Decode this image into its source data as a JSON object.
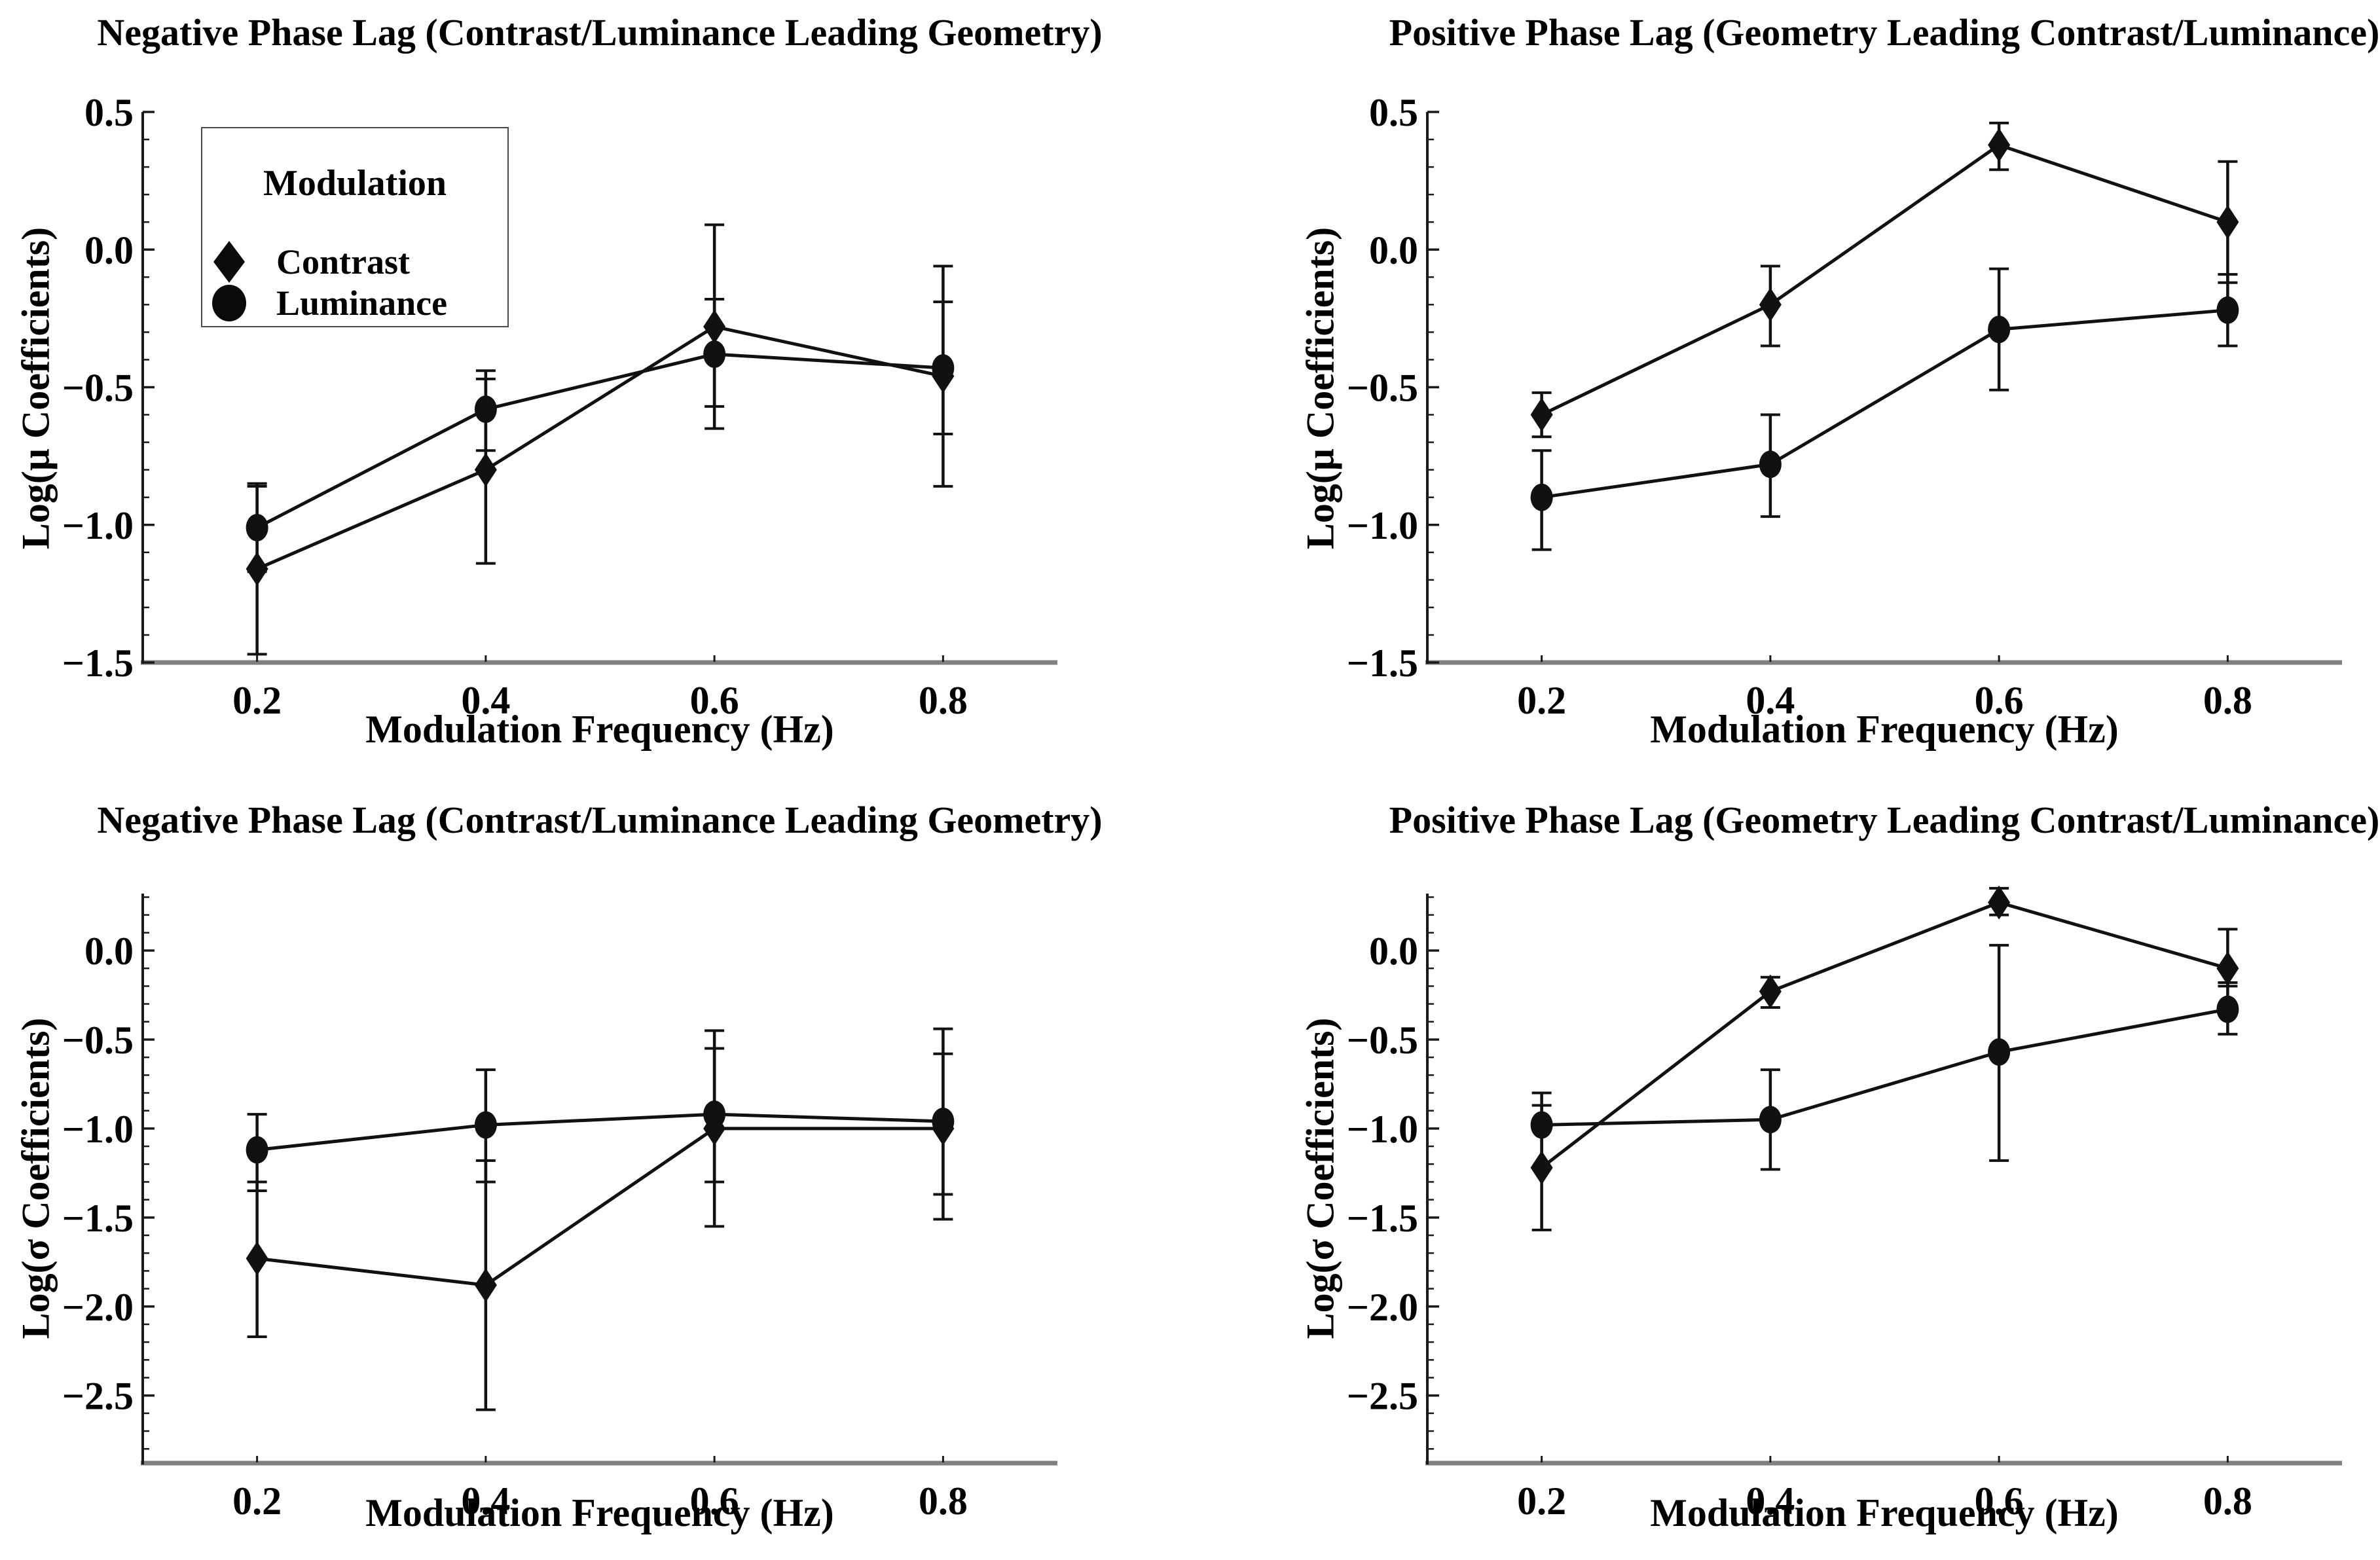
{
  "figure": {
    "background": "#ffffff",
    "text_color": "#000000",
    "series_color": "#111111",
    "axis_color": "#1a1a1a",
    "baseline_color": "#808080"
  },
  "legend": {
    "title": "Modulation",
    "items": [
      {
        "label": "Contrast",
        "marker": "diamond"
      },
      {
        "label": "Luminance",
        "marker": "circle"
      }
    ]
  },
  "chart_data": [
    {
      "type": "line",
      "position": "top-left",
      "title": "Negative Phase Lag (Contrast/Luminance Leading Geometry)",
      "xlabel": "Modulation Frequency (Hz)",
      "ylabel": "Log(μ Coefficients)",
      "xlim": [
        0.1,
        0.9
      ],
      "ylim": [
        -1.5,
        0.5
      ],
      "xticks": [
        0.2,
        0.4,
        0.6,
        0.8
      ],
      "yticks": [
        0.5,
        0.0,
        -0.5,
        -1.0,
        -1.5
      ],
      "x": [
        0.2,
        0.4,
        0.6,
        0.8
      ],
      "grid": false,
      "series": [
        {
          "name": "Contrast",
          "marker": "diamond",
          "values": [
            -1.16,
            -0.8,
            -0.28,
            -0.46
          ],
          "err_low": [
            -1.47,
            -1.14,
            -0.65,
            -0.86
          ],
          "err_high": [
            -0.86,
            -0.47,
            0.09,
            -0.06
          ]
        },
        {
          "name": "Luminance",
          "marker": "circle",
          "values": [
            -1.01,
            -0.58,
            -0.38,
            -0.43
          ],
          "err_low": [
            -1.17,
            -0.73,
            -0.57,
            -0.67
          ],
          "err_high": [
            -0.85,
            -0.44,
            -0.18,
            -0.19
          ]
        }
      ]
    },
    {
      "type": "line",
      "position": "top-right",
      "title": "Positive Phase Lag (Geometry Leading Contrast/Luminance)",
      "xlabel": "Modulation Frequency (Hz)",
      "ylabel": "Log(μ Coefficients)",
      "xlim": [
        0.1,
        0.9
      ],
      "ylim": [
        -1.5,
        0.5
      ],
      "xticks": [
        0.2,
        0.4,
        0.6,
        0.8
      ],
      "yticks": [
        0.5,
        0.0,
        -0.5,
        -1.0,
        -1.5
      ],
      "x": [
        0.2,
        0.4,
        0.6,
        0.8
      ],
      "grid": false,
      "series": [
        {
          "name": "Contrast",
          "marker": "diamond",
          "values": [
            -0.6,
            -0.2,
            0.38,
            0.1
          ],
          "err_low": [
            -0.68,
            -0.35,
            0.29,
            -0.12
          ],
          "err_high": [
            -0.52,
            -0.06,
            0.46,
            0.32
          ]
        },
        {
          "name": "Luminance",
          "marker": "circle",
          "values": [
            -0.9,
            -0.78,
            -0.29,
            -0.22
          ],
          "err_low": [
            -1.09,
            -0.97,
            -0.51,
            -0.35
          ],
          "err_high": [
            -0.73,
            -0.6,
            -0.07,
            -0.09
          ]
        }
      ]
    },
    {
      "type": "line",
      "position": "bottom-left",
      "title": "Negative Phase Lag (Contrast/Luminance Leading Geometry)",
      "xlabel": "Modulation Frequency (Hz)",
      "ylabel": "Log(σ Coefficients)",
      "xlim": [
        0.1,
        0.9
      ],
      "ylim": [
        -2.88,
        0.32
      ],
      "xticks": [
        0.2,
        0.4,
        0.6,
        0.8
      ],
      "yticks": [
        0.0,
        -0.5,
        -1.0,
        -1.5,
        -2.0,
        -2.5
      ],
      "x": [
        0.2,
        0.4,
        0.6,
        0.8
      ],
      "grid": false,
      "series": [
        {
          "name": "Contrast",
          "marker": "diamond",
          "values": [
            -1.73,
            -1.88,
            -1.0,
            -1.0
          ],
          "err_low": [
            -2.17,
            -2.58,
            -1.55,
            -1.51
          ],
          "err_high": [
            -1.3,
            -1.18,
            -0.45,
            -0.44
          ]
        },
        {
          "name": "Luminance",
          "marker": "circle",
          "values": [
            -1.12,
            -0.98,
            -0.92,
            -0.96
          ],
          "err_low": [
            -1.35,
            -1.3,
            -1.3,
            -1.37
          ],
          "err_high": [
            -0.92,
            -0.67,
            -0.55,
            -0.58
          ]
        }
      ]
    },
    {
      "type": "line",
      "position": "bottom-right",
      "title": "Positive Phase Lag (Geometry Leading Contrast/Luminance)",
      "xlabel": "Modulation Frequency (Hz)",
      "ylabel": "Log(σ Coefficients)",
      "xlim": [
        0.1,
        0.9
      ],
      "ylim": [
        -2.88,
        0.32
      ],
      "xticks": [
        0.2,
        0.4,
        0.6,
        0.8
      ],
      "yticks": [
        0.0,
        -0.5,
        -1.0,
        -1.5,
        -2.0,
        -2.5
      ],
      "x": [
        0.2,
        0.4,
        0.6,
        0.8
      ],
      "grid": false,
      "series": [
        {
          "name": "Contrast",
          "marker": "diamond",
          "values": [
            -1.22,
            -0.23,
            0.27,
            -0.1
          ],
          "err_low": [
            -1.57,
            -0.32,
            0.2,
            -0.2
          ],
          "err_high": [
            -0.87,
            -0.15,
            0.35,
            0.12
          ]
        },
        {
          "name": "Luminance",
          "marker": "circle",
          "values": [
            -0.98,
            -0.95,
            -0.57,
            -0.33
          ],
          "err_low": [
            -1.22,
            -1.23,
            -1.18,
            -0.47
          ],
          "err_high": [
            -0.8,
            -0.67,
            0.03,
            -0.18
          ]
        }
      ]
    }
  ]
}
